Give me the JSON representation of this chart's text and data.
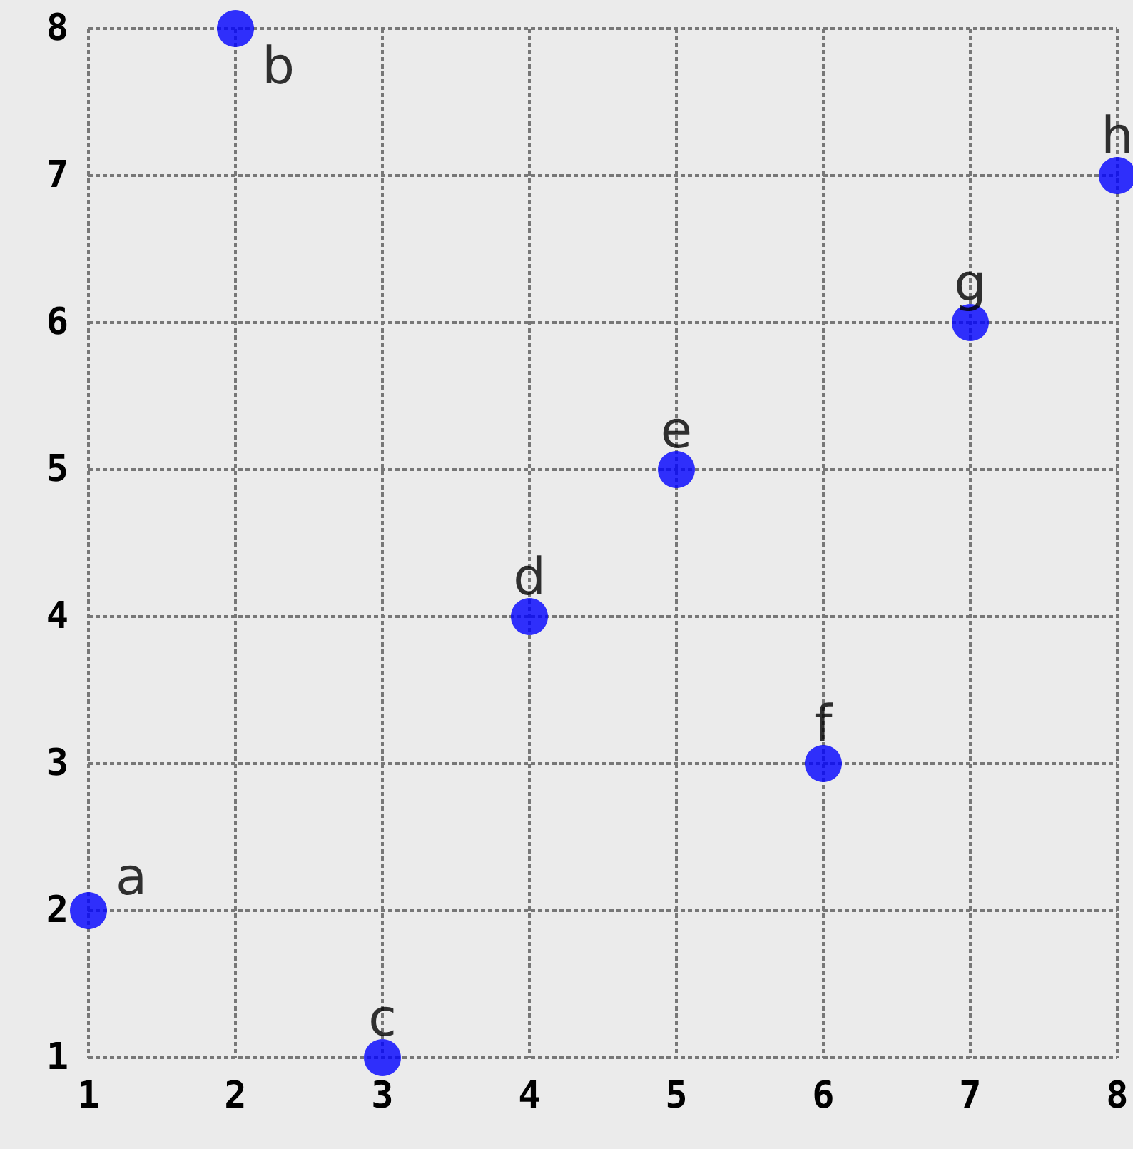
{
  "chart_data": {
    "type": "scatter",
    "x": [
      1,
      2,
      3,
      4,
      5,
      6,
      7,
      8
    ],
    "values": [
      2,
      8,
      1,
      4,
      5,
      3,
      6,
      7
    ],
    "color": "#0000ff",
    "marker": "circle",
    "grid": true,
    "xlim": [
      1,
      8
    ],
    "ylim": [
      1,
      8
    ],
    "xticks": [
      1,
      2,
      3,
      4,
      5,
      6,
      7,
      8
    ],
    "yticks": [
      1,
      2,
      3,
      4,
      5,
      6,
      7,
      8
    ],
    "annotations": [
      {
        "text": "a",
        "x": 1,
        "y": 2
      },
      {
        "text": "b",
        "x": 2,
        "y": 8
      },
      {
        "text": "c",
        "x": 3,
        "y": 1
      },
      {
        "text": "d",
        "x": 4,
        "y": 4
      },
      {
        "text": "e",
        "x": 5,
        "y": 5
      },
      {
        "text": "f",
        "x": 6,
        "y": 3
      },
      {
        "text": "g",
        "x": 7,
        "y": 6
      },
      {
        "text": "h",
        "x": 8,
        "y": 7
      }
    ]
  }
}
